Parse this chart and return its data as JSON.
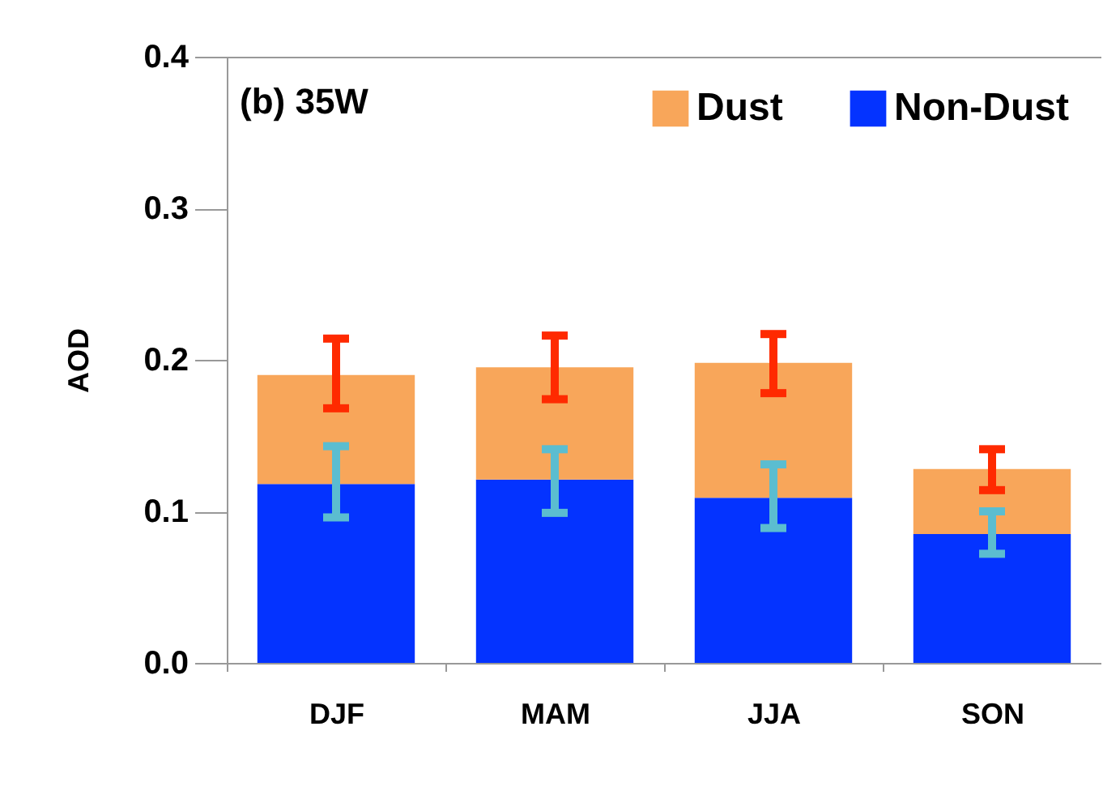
{
  "chart_data": {
    "type": "bar",
    "title": "(b) 35W",
    "ylabel": "AOD",
    "categories": [
      "DJF",
      "MAM",
      "JJA",
      "SON"
    ],
    "stacked": true,
    "series": [
      {
        "name": "Non-Dust",
        "color": "#0433ff",
        "values": [
          0.118,
          0.121,
          0.109,
          0.085
        ],
        "errors": [
          [
            0.096,
            0.143
          ],
          [
            0.099,
            0.141
          ],
          [
            0.089,
            0.131
          ],
          [
            0.072,
            0.1
          ]
        ]
      },
      {
        "name": "Dust",
        "color": "#f8a65a",
        "values": [
          0.072,
          0.074,
          0.089,
          0.043
        ],
        "errors": [
          [
            0.168,
            0.214
          ],
          [
            0.174,
            0.216
          ],
          [
            0.178,
            0.217
          ],
          [
            0.114,
            0.141
          ]
        ]
      }
    ],
    "ylim": [
      0,
      0.4
    ],
    "yticks": [
      {
        "value": 0,
        "label": "0.0"
      },
      0.1,
      0.2,
      0.3,
      0.4
    ],
    "grid": false,
    "legend": "top right"
  }
}
